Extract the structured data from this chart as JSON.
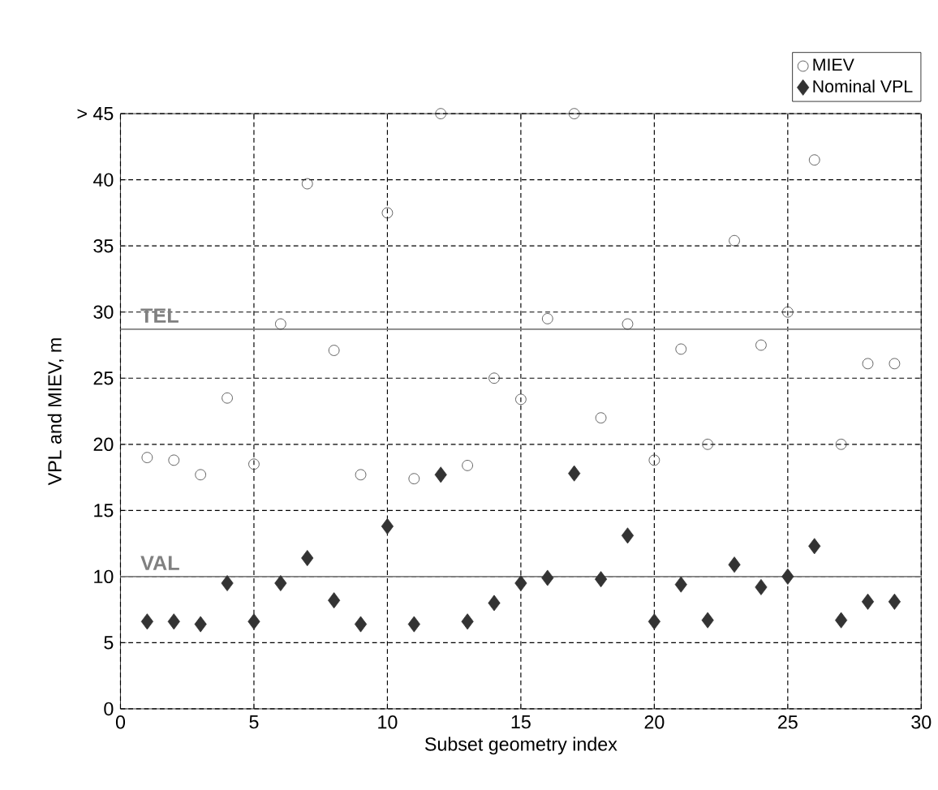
{
  "chart_data": {
    "type": "scatter",
    "xlabel": "Subset geometry index",
    "ylabel": "VPL and MIEV, m",
    "x": [
      1,
      2,
      3,
      4,
      5,
      6,
      7,
      8,
      9,
      10,
      11,
      12,
      13,
      14,
      15,
      16,
      17,
      18,
      19,
      20,
      21,
      22,
      23,
      24,
      25,
      26,
      27,
      28,
      29
    ],
    "series": [
      {
        "name": "MIEV",
        "color": "#333333",
        "marker": "circle",
        "values": [
          19,
          18.8,
          17.7,
          23.5,
          18.5,
          29.1,
          39.7,
          27.1,
          17.7,
          37.5,
          17.4,
          45,
          18.4,
          25,
          23.4,
          29.5,
          45,
          22,
          29.1,
          18.8,
          27.2,
          20,
          35.4,
          27.5,
          30,
          41.5,
          20,
          26.1,
          26.1
        ]
      },
      {
        "name": "Nominal VPL",
        "color": "#333333",
        "marker": "diamond",
        "values": [
          6.6,
          6.6,
          6.4,
          9.5,
          6.6,
          9.5,
          11.4,
          8.2,
          6.4,
          13.8,
          6.4,
          17.7,
          6.6,
          8,
          9.5,
          9.9,
          17.8,
          9.8,
          13.1,
          6.6,
          9.4,
          6.7,
          10.9,
          9.2,
          10,
          12.3,
          6.7,
          8.1,
          8.1
        ]
      }
    ],
    "xlim": [
      0,
      30
    ],
    "ylim": [
      0,
      45
    ],
    "xticks": [
      0,
      5,
      10,
      15,
      20,
      25,
      30
    ],
    "yticks": [
      0,
      5,
      10,
      15,
      20,
      25,
      30,
      35,
      40,
      {
        "value": 45,
        "label": "> 45"
      }
    ],
    "ref_lines": [
      {
        "axis": "y",
        "value": 28.7,
        "label": "TEL",
        "color": "#808080"
      },
      {
        "axis": "y",
        "value": 10,
        "label": "VAL",
        "color": "#808080"
      }
    ],
    "grid": true,
    "legend": "top right"
  }
}
